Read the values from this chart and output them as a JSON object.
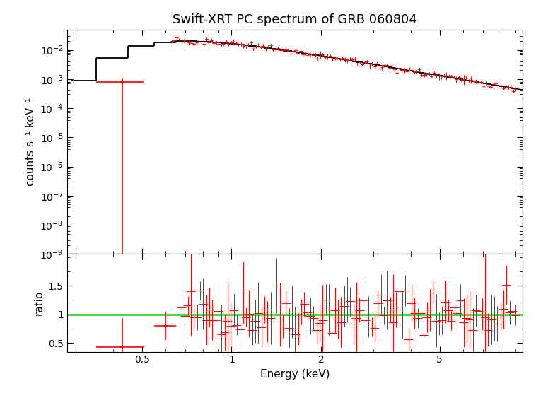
{
  "title": "Swift-XRT PC spectrum of GRB 060804",
  "xlabel": "Energy (keV)",
  "ylabel_top": "counts s⁻¹ keV⁻¹",
  "ylabel_bottom": "ratio",
  "x_min": 0.28,
  "x_max": 9.5,
  "y_top_min": 1e-09,
  "y_top_max": 0.05,
  "y_bot_min": 0.35,
  "y_bot_max": 2.05,
  "model_color": "#000000",
  "data_color": "#ff0000",
  "ratio_line_color": "#00dd00",
  "background_color": "#ffffff",
  "title_fontsize": 13,
  "label_fontsize": 11
}
